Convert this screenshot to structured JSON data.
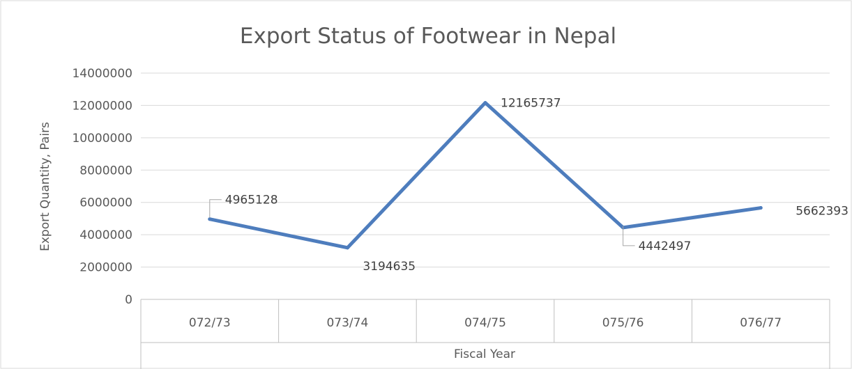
{
  "chart_data": {
    "type": "line",
    "title": "Export Status of Footwear in Nepal",
    "xlabel": "Fiscal Year",
    "ylabel": "Export Quantity, Pairs",
    "categories": [
      "072/73",
      "073/74",
      "074/75",
      "075/76",
      "076/77"
    ],
    "series": [
      {
        "values": [
          4965128,
          3194635,
          12165737,
          4442497,
          5662393
        ],
        "color": "#4e7dbd"
      }
    ],
    "data_labels": [
      "4965128",
      "3194635",
      "12165737",
      "4442497",
      "5662393"
    ],
    "ylim": [
      0,
      14000000
    ],
    "yticks": [
      0,
      2000000,
      4000000,
      6000000,
      8000000,
      10000000,
      12000000,
      14000000
    ],
    "ytick_labels": [
      "0",
      "2000000",
      "4000000",
      "6000000",
      "8000000",
      "10000000",
      "12000000",
      "14000000"
    ],
    "grid": true,
    "legend": "none",
    "colors": {
      "line": "#4e7dbd",
      "grid": "#d9d9d9",
      "border": "#bfbfbf",
      "text": "#595959"
    }
  }
}
